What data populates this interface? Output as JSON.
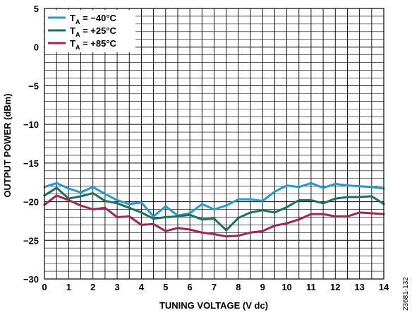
{
  "figure_id": "23681-132",
  "chart_data": {
    "type": "line",
    "xlabel": "TUNING VOLTAGE (V dc)",
    "ylabel": "OUTPUT POWER (dBm)",
    "xlim": [
      0,
      14
    ],
    "ylim": [
      -30,
      5
    ],
    "x_ticks": [
      0,
      1,
      2,
      3,
      4,
      5,
      6,
      7,
      8,
      9,
      10,
      11,
      12,
      13,
      14
    ],
    "y_ticks": [
      5,
      0,
      -5,
      -10,
      -15,
      -20,
      -25,
      -30
    ],
    "x_tick_labels": [
      "0",
      "1",
      "2",
      "3",
      "4",
      "5",
      "6",
      "7",
      "8",
      "9",
      "10",
      "11",
      "12",
      "13",
      "14"
    ],
    "y_tick_labels": [
      "5",
      "0",
      "−5",
      "−10",
      "−15",
      "−20",
      "−25",
      "−30"
    ],
    "grid": true,
    "legend_position": "top-left",
    "x": [
      0,
      0.5,
      1,
      1.5,
      2,
      2.5,
      3,
      3.5,
      4,
      4.5,
      5,
      5.5,
      6,
      6.5,
      7,
      7.5,
      8,
      8.5,
      9,
      9.5,
      10,
      10.5,
      11,
      11.5,
      12,
      12.5,
      13,
      13.5,
      14
    ],
    "series": [
      {
        "name": "T",
        "name_sub": "A",
        "name_rest": " = −40°C",
        "color": "#1f9bd7",
        "values": [
          -18.1,
          -17.6,
          -18.3,
          -18.8,
          -18.1,
          -19.0,
          -19.8,
          -20.3,
          -20.1,
          -21.9,
          -20.6,
          -21.8,
          -21.5,
          -20.3,
          -21.0,
          -20.5,
          -19.7,
          -19.7,
          -19.9,
          -18.7,
          -17.9,
          -18.1,
          -17.6,
          -18.2,
          -17.7,
          -17.9,
          -18.0,
          -18.1,
          -18.3
        ]
      },
      {
        "name": "T",
        "name_sub": "A",
        "name_rest": " = +25°C",
        "color": "#1b7060",
        "values": [
          -19.2,
          -18.2,
          -19.6,
          -19.3,
          -18.9,
          -19.9,
          -20.2,
          -20.8,
          -21.4,
          -22.2,
          -22.0,
          -21.9,
          -21.7,
          -22.3,
          -22.2,
          -23.7,
          -22.1,
          -21.4,
          -21.1,
          -21.4,
          -20.7,
          -19.8,
          -19.8,
          -20.2,
          -19.6,
          -19.4,
          -19.4,
          -19.3,
          -20.3
        ]
      },
      {
        "name": "T",
        "name_sub": "A",
        "name_rest": " = +85°C",
        "color": "#a62550",
        "values": [
          -20.4,
          -19.2,
          -19.8,
          -20.5,
          -21.0,
          -20.8,
          -22.0,
          -21.9,
          -23.0,
          -22.9,
          -23.8,
          -23.4,
          -23.6,
          -24.0,
          -24.2,
          -24.5,
          -24.4,
          -24.0,
          -23.8,
          -23.1,
          -22.8,
          -22.3,
          -21.6,
          -21.6,
          -21.9,
          -21.9,
          -21.4,
          -21.5,
          -21.6
        ]
      }
    ]
  }
}
